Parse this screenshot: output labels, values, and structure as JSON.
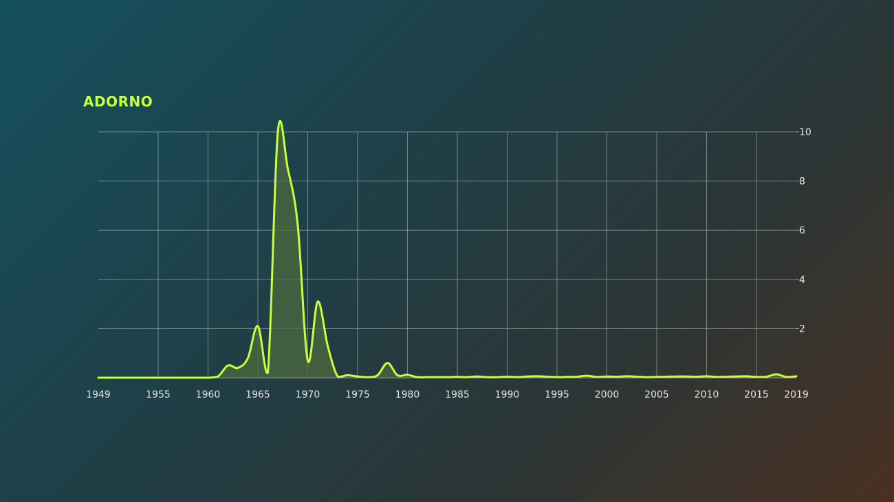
{
  "title": "ADORNO",
  "colors": {
    "line": "#c8ff3c",
    "area": "#4d6a3f",
    "grid": "#b8c4c4",
    "tick_text": "#e2e6e4"
  },
  "chart_data": {
    "type": "area",
    "title": "ADORNO",
    "xlabel": "",
    "ylabel": "",
    "xlim": [
      1949,
      2019
    ],
    "ylim": [
      0,
      10
    ],
    "x_ticks": [
      1949,
      1955,
      1960,
      1965,
      1970,
      1975,
      1980,
      1985,
      1990,
      1995,
      2000,
      2005,
      2010,
      2015,
      2019
    ],
    "y_ticks": [
      2,
      4,
      6,
      8,
      10
    ],
    "y_axis_position": "right",
    "grid": true,
    "legend": "none",
    "series": [
      {
        "x": [
          1949,
          1950,
          1951,
          1952,
          1953,
          1954,
          1955,
          1956,
          1957,
          1958,
          1959,
          1960,
          1961,
          1962,
          1963,
          1964,
          1965,
          1966,
          1967,
          1968,
          1969,
          1970,
          1971,
          1972,
          1973,
          1974,
          1975,
          1976,
          1977,
          1978,
          1979,
          1980,
          1981,
          1982,
          1983,
          1984,
          1985,
          1986,
          1987,
          1988,
          1989,
          1990,
          1991,
          1992,
          1993,
          1994,
          1995,
          1996,
          1997,
          1998,
          1999,
          2000,
          2001,
          2002,
          2003,
          2004,
          2005,
          2006,
          2007,
          2008,
          2009,
          2010,
          2011,
          2012,
          2013,
          2014,
          2015,
          2016,
          2017,
          2018,
          2019
        ],
        "values": [
          0,
          0,
          0,
          0,
          0,
          0,
          0,
          0,
          0,
          0,
          0,
          0,
          0.05,
          0.5,
          0.4,
          0.8,
          2.1,
          0.2,
          10,
          8.5,
          6.2,
          0.7,
          3.1,
          1.3,
          0.05,
          0.1,
          0.05,
          0.02,
          0.1,
          0.6,
          0.1,
          0.12,
          0.02,
          0.02,
          0.02,
          0.02,
          0.03,
          0.02,
          0.05,
          0.02,
          0.02,
          0.04,
          0.02,
          0.05,
          0.06,
          0.04,
          0.02,
          0.03,
          0.04,
          0.08,
          0.03,
          0.05,
          0.04,
          0.06,
          0.04,
          0.02,
          0.03,
          0.04,
          0.05,
          0.05,
          0.04,
          0.06,
          0.03,
          0.04,
          0.05,
          0.06,
          0.03,
          0.04,
          0.14,
          0.03,
          0.06
        ]
      }
    ]
  }
}
